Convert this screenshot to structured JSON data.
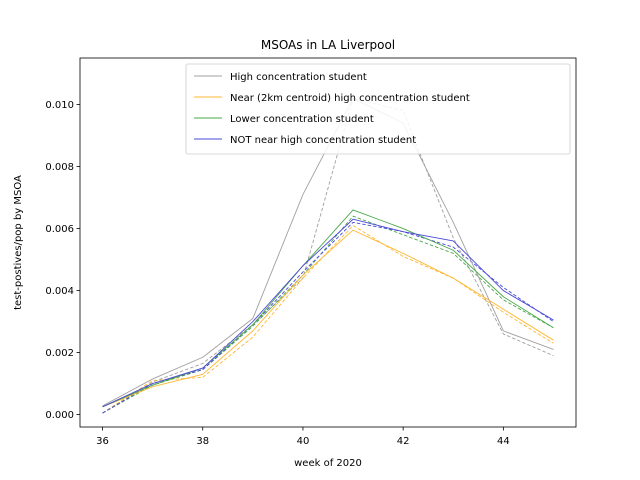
{
  "chart_data": {
    "type": "line",
    "title": "MSOAs in LA Liverpool",
    "xlabel": "week of 2020",
    "ylabel": "test-postives/pop by MSOA",
    "xlim": [
      35.55,
      45.45
    ],
    "ylim": [
      -0.0004,
      0.0115
    ],
    "xticks": [
      36,
      38,
      40,
      42,
      44
    ],
    "yticks": [
      0.0,
      0.002,
      0.004,
      0.006,
      0.008,
      0.01
    ],
    "ytick_labels": [
      "0.000",
      "0.002",
      "0.004",
      "0.006",
      "0.008",
      "0.010"
    ],
    "grid": false,
    "legend_placement": "upper-center",
    "x": [
      36,
      37,
      38,
      39,
      40,
      41,
      42,
      43,
      44,
      45
    ],
    "series": [
      {
        "name": "High concentration student",
        "color": "#a0a0a0",
        "style": "solid",
        "values": [
          0.00028,
          0.00115,
          0.00185,
          0.0031,
          0.0071,
          0.0102,
          0.0094,
          0.0062,
          0.0027,
          0.0021
        ]
      },
      {
        "name": "Near (2km centroid) high concentration student",
        "color": "#ffb733",
        "style": "solid",
        "values": [
          0.00025,
          0.0009,
          0.0013,
          0.0027,
          0.0045,
          0.00595,
          0.0052,
          0.0044,
          0.0034,
          0.0024
        ]
      },
      {
        "name": "Lower concentration student",
        "color": "#4aa84a",
        "style": "solid",
        "values": [
          0.00025,
          0.00095,
          0.0015,
          0.0029,
          0.0048,
          0.0066,
          0.006,
          0.0053,
          0.0038,
          0.0028
        ]
      },
      {
        "name": "NOT near high concentration student",
        "color": "#4a4ad8",
        "style": "solid",
        "values": [
          0.00025,
          0.001,
          0.0015,
          0.003,
          0.0048,
          0.0063,
          0.0059,
          0.0056,
          0.004,
          0.00305
        ]
      },
      {
        "color": "#a0a0a0",
        "style": "dashed",
        "values": [
          5e-05,
          0.00105,
          0.00165,
          0.0029,
          0.0044,
          0.0102,
          0.0098,
          0.0057,
          0.0026,
          0.0019
        ]
      },
      {
        "color": "#ffb733",
        "style": "dashed",
        "values": [
          5e-05,
          0.0011,
          0.0012,
          0.0025,
          0.0044,
          0.0061,
          0.0051,
          0.0044,
          0.0033,
          0.0023
        ]
      },
      {
        "color": "#4aa84a",
        "style": "dashed",
        "values": [
          5e-05,
          0.00095,
          0.00145,
          0.00285,
          0.0045,
          0.0064,
          0.0058,
          0.0052,
          0.0037,
          0.0028
        ]
      },
      {
        "color": "#4a4ad8",
        "style": "dashed",
        "values": [
          5e-05,
          0.001,
          0.00145,
          0.0029,
          0.0046,
          0.0062,
          0.0059,
          0.0054,
          0.0041,
          0.003
        ]
      }
    ]
  }
}
